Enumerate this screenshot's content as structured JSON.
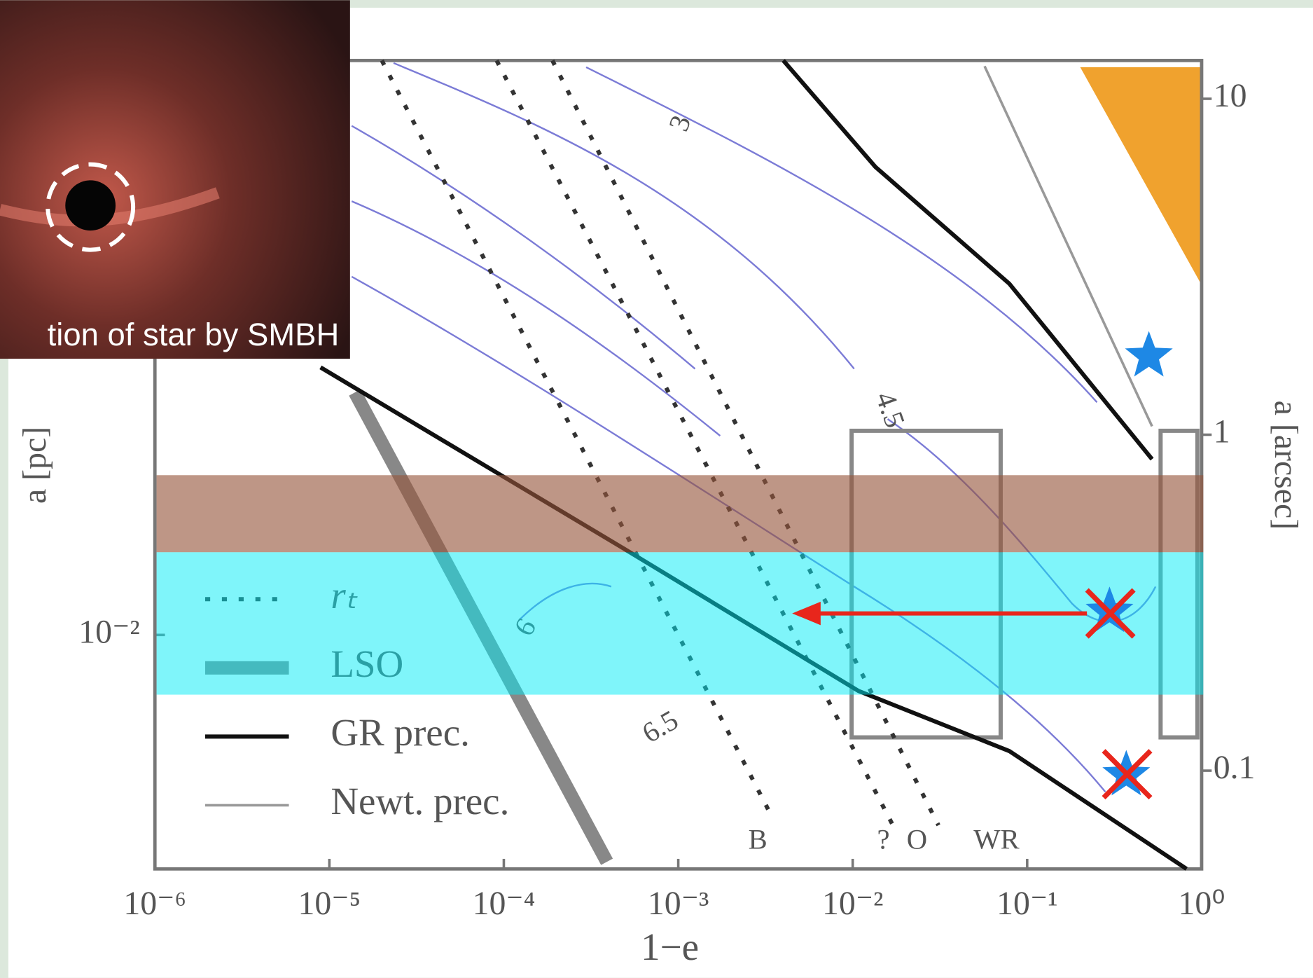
{
  "chart_data": {
    "type": "line",
    "xlabel": "1−e",
    "ylabel": "a [pc]",
    "y2label": "a [arcsec]",
    "log_x": true,
    "log_y": true,
    "grid": false,
    "xlim": [
      1e-06,
      1
    ],
    "xticks": [
      {
        "value": 1e-06,
        "label": "10⁻⁶"
      },
      {
        "value": 1e-05,
        "label": "10⁻⁵"
      },
      {
        "value": 0.0001,
        "label": "10⁻⁴"
      },
      {
        "value": 0.001,
        "label": "10⁻³"
      },
      {
        "value": 0.01,
        "label": "10⁻²"
      },
      {
        "value": 0.1,
        "label": "10⁻¹"
      },
      {
        "value": 1,
        "label": "10⁰"
      }
    ],
    "ylim": [
      0.002,
      0.52
    ],
    "yticks": [
      {
        "value": 0.01,
        "label": "10⁻²"
      }
    ],
    "y2lim": [
      0.051,
      13
    ],
    "y2ticks": [
      0.1,
      1,
      10
    ],
    "series": [
      {
        "name": "rₜ",
        "color": "#333333",
        "style": "dashed",
        "x": [
          2e-05,
          0.0034,
          null,
          9.1e-05,
          0.017,
          null,
          0.00019,
          0.031
        ],
        "values": [
          0.52,
          0.0029,
          null,
          0.52,
          0.0027,
          null,
          0.52,
          0.0027
        ]
      },
      {
        "name": "LSO",
        "color": "#888888",
        "style": "thick",
        "x": [
          1.4e-05,
          0.00039
        ],
        "values": [
          0.053,
          0.0021
        ]
      },
      {
        "name": "GR prec.",
        "color": "#111111",
        "style": "solid",
        "x": [
          8.9e-06,
          0.00048,
          0.0108,
          0.079,
          0.82,
          null,
          0.004,
          0.0135,
          0.079,
          0.52
        ],
        "values": [
          0.063,
          0.0182,
          0.0068,
          0.0045,
          0.002,
          null,
          0.52,
          0.25,
          0.112,
          0.0335
        ]
      },
      {
        "name": "Newt. prec.",
        "color": "#999999",
        "style": "thin",
        "x": [
          0.057,
          0.52
        ],
        "values": [
          0.5,
          0.042
        ]
      }
    ],
    "annotations": [
      "3",
      "4.5",
      "6",
      "6.5",
      "B",
      "?",
      "O",
      "WR"
    ],
    "inset_caption": "tion of star by SMBH"
  }
}
